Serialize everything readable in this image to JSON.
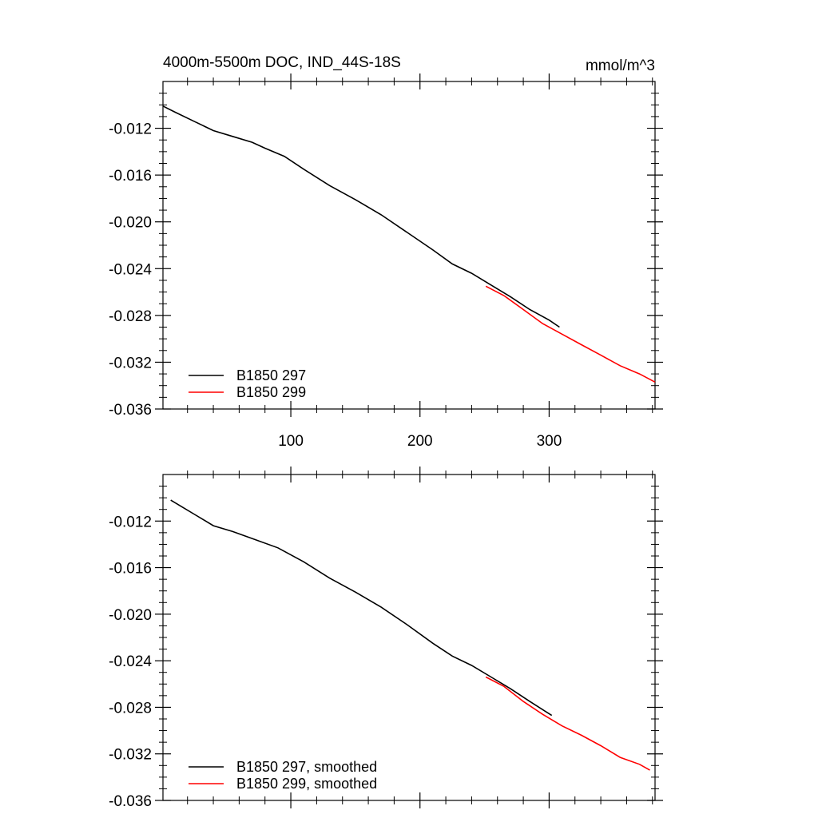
{
  "chart_data": [
    {
      "type": "line",
      "title": "4000m-5500m DOC, IND_44S-18S",
      "units": "mmol/m^3",
      "xlabel": "",
      "ylabel": "",
      "xlim": [
        1,
        382
      ],
      "ylim": [
        -0.036,
        -0.008
      ],
      "x_ticks": [
        100,
        200,
        300
      ],
      "y_ticks": [
        -0.036,
        -0.032,
        -0.028,
        -0.024,
        -0.02,
        -0.016,
        -0.012
      ],
      "y_tick_labels": [
        "-0.036",
        "-0.032",
        "-0.028",
        "-0.024",
        "-0.020",
        "-0.016",
        "-0.012"
      ],
      "x_tick_labels": [
        "100",
        "200",
        "300"
      ],
      "grid": false,
      "legend_position": "bottom-left",
      "series": [
        {
          "name": "B1850 297",
          "color": "#000000",
          "points": [
            [
              1,
              -0.0101
            ],
            [
              10,
              -0.0106
            ],
            [
              25,
              -0.0114
            ],
            [
              40,
              -0.0122
            ],
            [
              55,
              -0.0127
            ],
            [
              70,
              -0.0132
            ],
            [
              80,
              -0.0137
            ],
            [
              95,
              -0.0144
            ],
            [
              110,
              -0.0155
            ],
            [
              130,
              -0.0169
            ],
            [
              150,
              -0.0181
            ],
            [
              170,
              -0.0194
            ],
            [
              190,
              -0.0209
            ],
            [
              210,
              -0.0224
            ],
            [
              225,
              -0.0236
            ],
            [
              240,
              -0.0244
            ],
            [
              255,
              -0.0254
            ],
            [
              270,
              -0.0264
            ],
            [
              285,
              -0.0275
            ],
            [
              300,
              -0.0284
            ],
            [
              308,
              -0.029
            ]
          ]
        },
        {
          "name": "B1850 299",
          "color": "#ff0000",
          "points": [
            [
              251,
              -0.0255
            ],
            [
              265,
              -0.0263
            ],
            [
              280,
              -0.0275
            ],
            [
              295,
              -0.0287
            ],
            [
              310,
              -0.0296
            ],
            [
              325,
              -0.0305
            ],
            [
              340,
              -0.0314
            ],
            [
              355,
              -0.0323
            ],
            [
              370,
              -0.033
            ],
            [
              382,
              -0.0337
            ]
          ]
        }
      ]
    },
    {
      "type": "line",
      "title": "",
      "xlabel": "",
      "ylabel": "",
      "xlim": [
        1,
        382
      ],
      "ylim": [
        -0.036,
        -0.008
      ],
      "x_ticks": [
        100,
        200,
        300
      ],
      "y_ticks": [
        -0.036,
        -0.032,
        -0.028,
        -0.024,
        -0.02,
        -0.016,
        -0.012
      ],
      "y_tick_labels": [
        "-0.036",
        "-0.032",
        "-0.028",
        "-0.024",
        "-0.020",
        "-0.016",
        "-0.012"
      ],
      "grid": false,
      "legend_position": "bottom-left",
      "series": [
        {
          "name": "B1850 297, smoothed",
          "color": "#000000",
          "points": [
            [
              7,
              -0.0102
            ],
            [
              25,
              -0.0114
            ],
            [
              40,
              -0.0124
            ],
            [
              55,
              -0.0129
            ],
            [
              70,
              -0.0135
            ],
            [
              90,
              -0.0143
            ],
            [
              110,
              -0.0155
            ],
            [
              130,
              -0.0169
            ],
            [
              150,
              -0.0181
            ],
            [
              170,
              -0.0194
            ],
            [
              190,
              -0.0209
            ],
            [
              210,
              -0.0225
            ],
            [
              225,
              -0.0236
            ],
            [
              240,
              -0.0244
            ],
            [
              255,
              -0.0254
            ],
            [
              270,
              -0.0264
            ],
            [
              285,
              -0.0275
            ],
            [
              302,
              -0.0287
            ]
          ]
        },
        {
          "name": "B1850 299, smoothed",
          "color": "#ff0000",
          "points": [
            [
              251,
              -0.0254
            ],
            [
              265,
              -0.0262
            ],
            [
              280,
              -0.0275
            ],
            [
              295,
              -0.0286
            ],
            [
              310,
              -0.0296
            ],
            [
              325,
              -0.0304
            ],
            [
              340,
              -0.0313
            ],
            [
              355,
              -0.0323
            ],
            [
              370,
              -0.0329
            ],
            [
              378,
              -0.0334
            ]
          ]
        }
      ]
    }
  ]
}
